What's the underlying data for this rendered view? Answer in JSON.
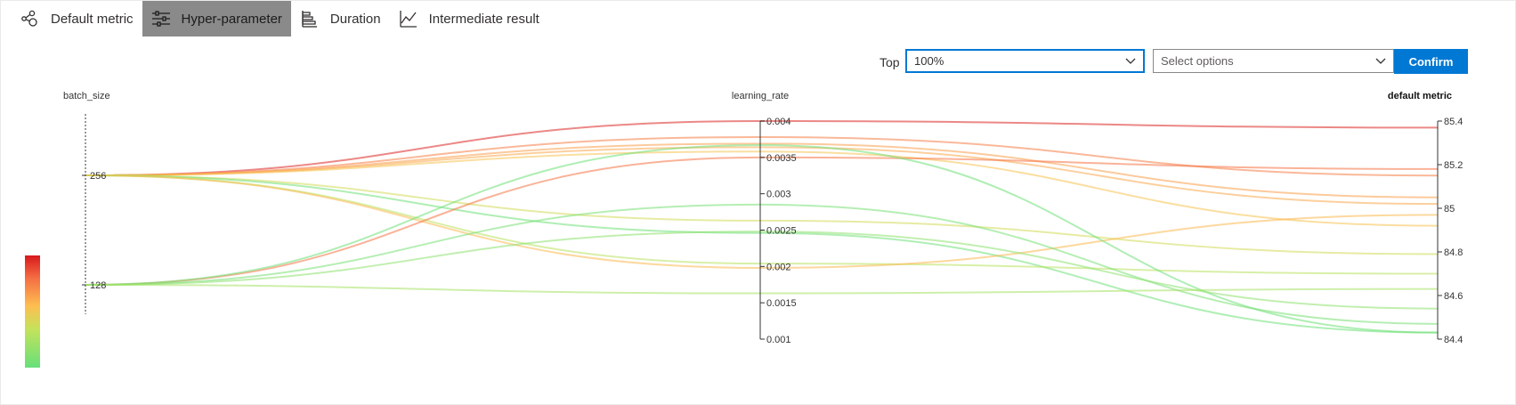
{
  "tabs": [
    {
      "label": "Default metric",
      "icon": "network-nodes-icon",
      "active": false
    },
    {
      "label": "Hyper-parameter",
      "icon": "sliders-icon",
      "active": true
    },
    {
      "label": "Duration",
      "icon": "bar-chart-horizontal-icon",
      "active": false
    },
    {
      "label": "Intermediate result",
      "icon": "line-chart-icon",
      "active": false
    }
  ],
  "controls": {
    "top_label": "Top",
    "top_value": "100%",
    "options_placeholder": "Select options",
    "confirm_label": "Confirm"
  },
  "colors": {
    "accent": "#0078d4",
    "active_tab": "#8a8a8a",
    "scale_high": "#d7191c",
    "scale_mid": "#fdae61",
    "scale_low": "#66e07a"
  },
  "chart_data": {
    "type": "parallel_coordinates",
    "axes": [
      {
        "name": "batch_size",
        "type": "categorical",
        "ticks": [
          "256",
          "128"
        ]
      },
      {
        "name": "learning_rate",
        "type": "linear",
        "range": [
          0.001,
          0.004
        ],
        "ticks": [
          "0.004",
          "0.0035",
          "0.003",
          "0.0025",
          "0.002",
          "0.0015",
          "0.001"
        ]
      },
      {
        "name": "default metric",
        "type": "linear",
        "range": [
          84.4,
          85.4
        ],
        "ticks": [
          "85.4",
          "85.2",
          "85",
          "84.8",
          "84.6",
          "84.4"
        ]
      }
    ],
    "color_by": "default metric",
    "lines": [
      {
        "batch_size": "256",
        "learning_rate": 0.004,
        "default_metric": 85.37
      },
      {
        "batch_size": "256",
        "learning_rate": 0.00378,
        "default_metric": 85.15
      },
      {
        "batch_size": "256",
        "learning_rate": 0.00369,
        "default_metric": 85.05
      },
      {
        "batch_size": "256",
        "learning_rate": 0.00364,
        "default_metric": 85.02
      },
      {
        "batch_size": "256",
        "learning_rate": 0.00358,
        "default_metric": 84.92
      },
      {
        "batch_size": "256",
        "learning_rate": 0.00263,
        "default_metric": 84.79
      },
      {
        "batch_size": "256",
        "learning_rate": 0.00246,
        "default_metric": 84.43
      },
      {
        "batch_size": "256",
        "learning_rate": 0.00204,
        "default_metric": 84.7
      },
      {
        "batch_size": "256",
        "learning_rate": 0.00198,
        "default_metric": 84.97
      },
      {
        "batch_size": "128",
        "learning_rate": 0.0035,
        "default_metric": 85.18
      },
      {
        "batch_size": "128",
        "learning_rate": 0.00367,
        "default_metric": 84.43
      },
      {
        "batch_size": "128",
        "learning_rate": 0.00285,
        "default_metric": 84.47
      },
      {
        "batch_size": "128",
        "learning_rate": 0.00248,
        "default_metric": 84.54
      },
      {
        "batch_size": "128",
        "learning_rate": 0.00163,
        "default_metric": 84.63
      }
    ],
    "colorbar": true,
    "grid": false
  }
}
